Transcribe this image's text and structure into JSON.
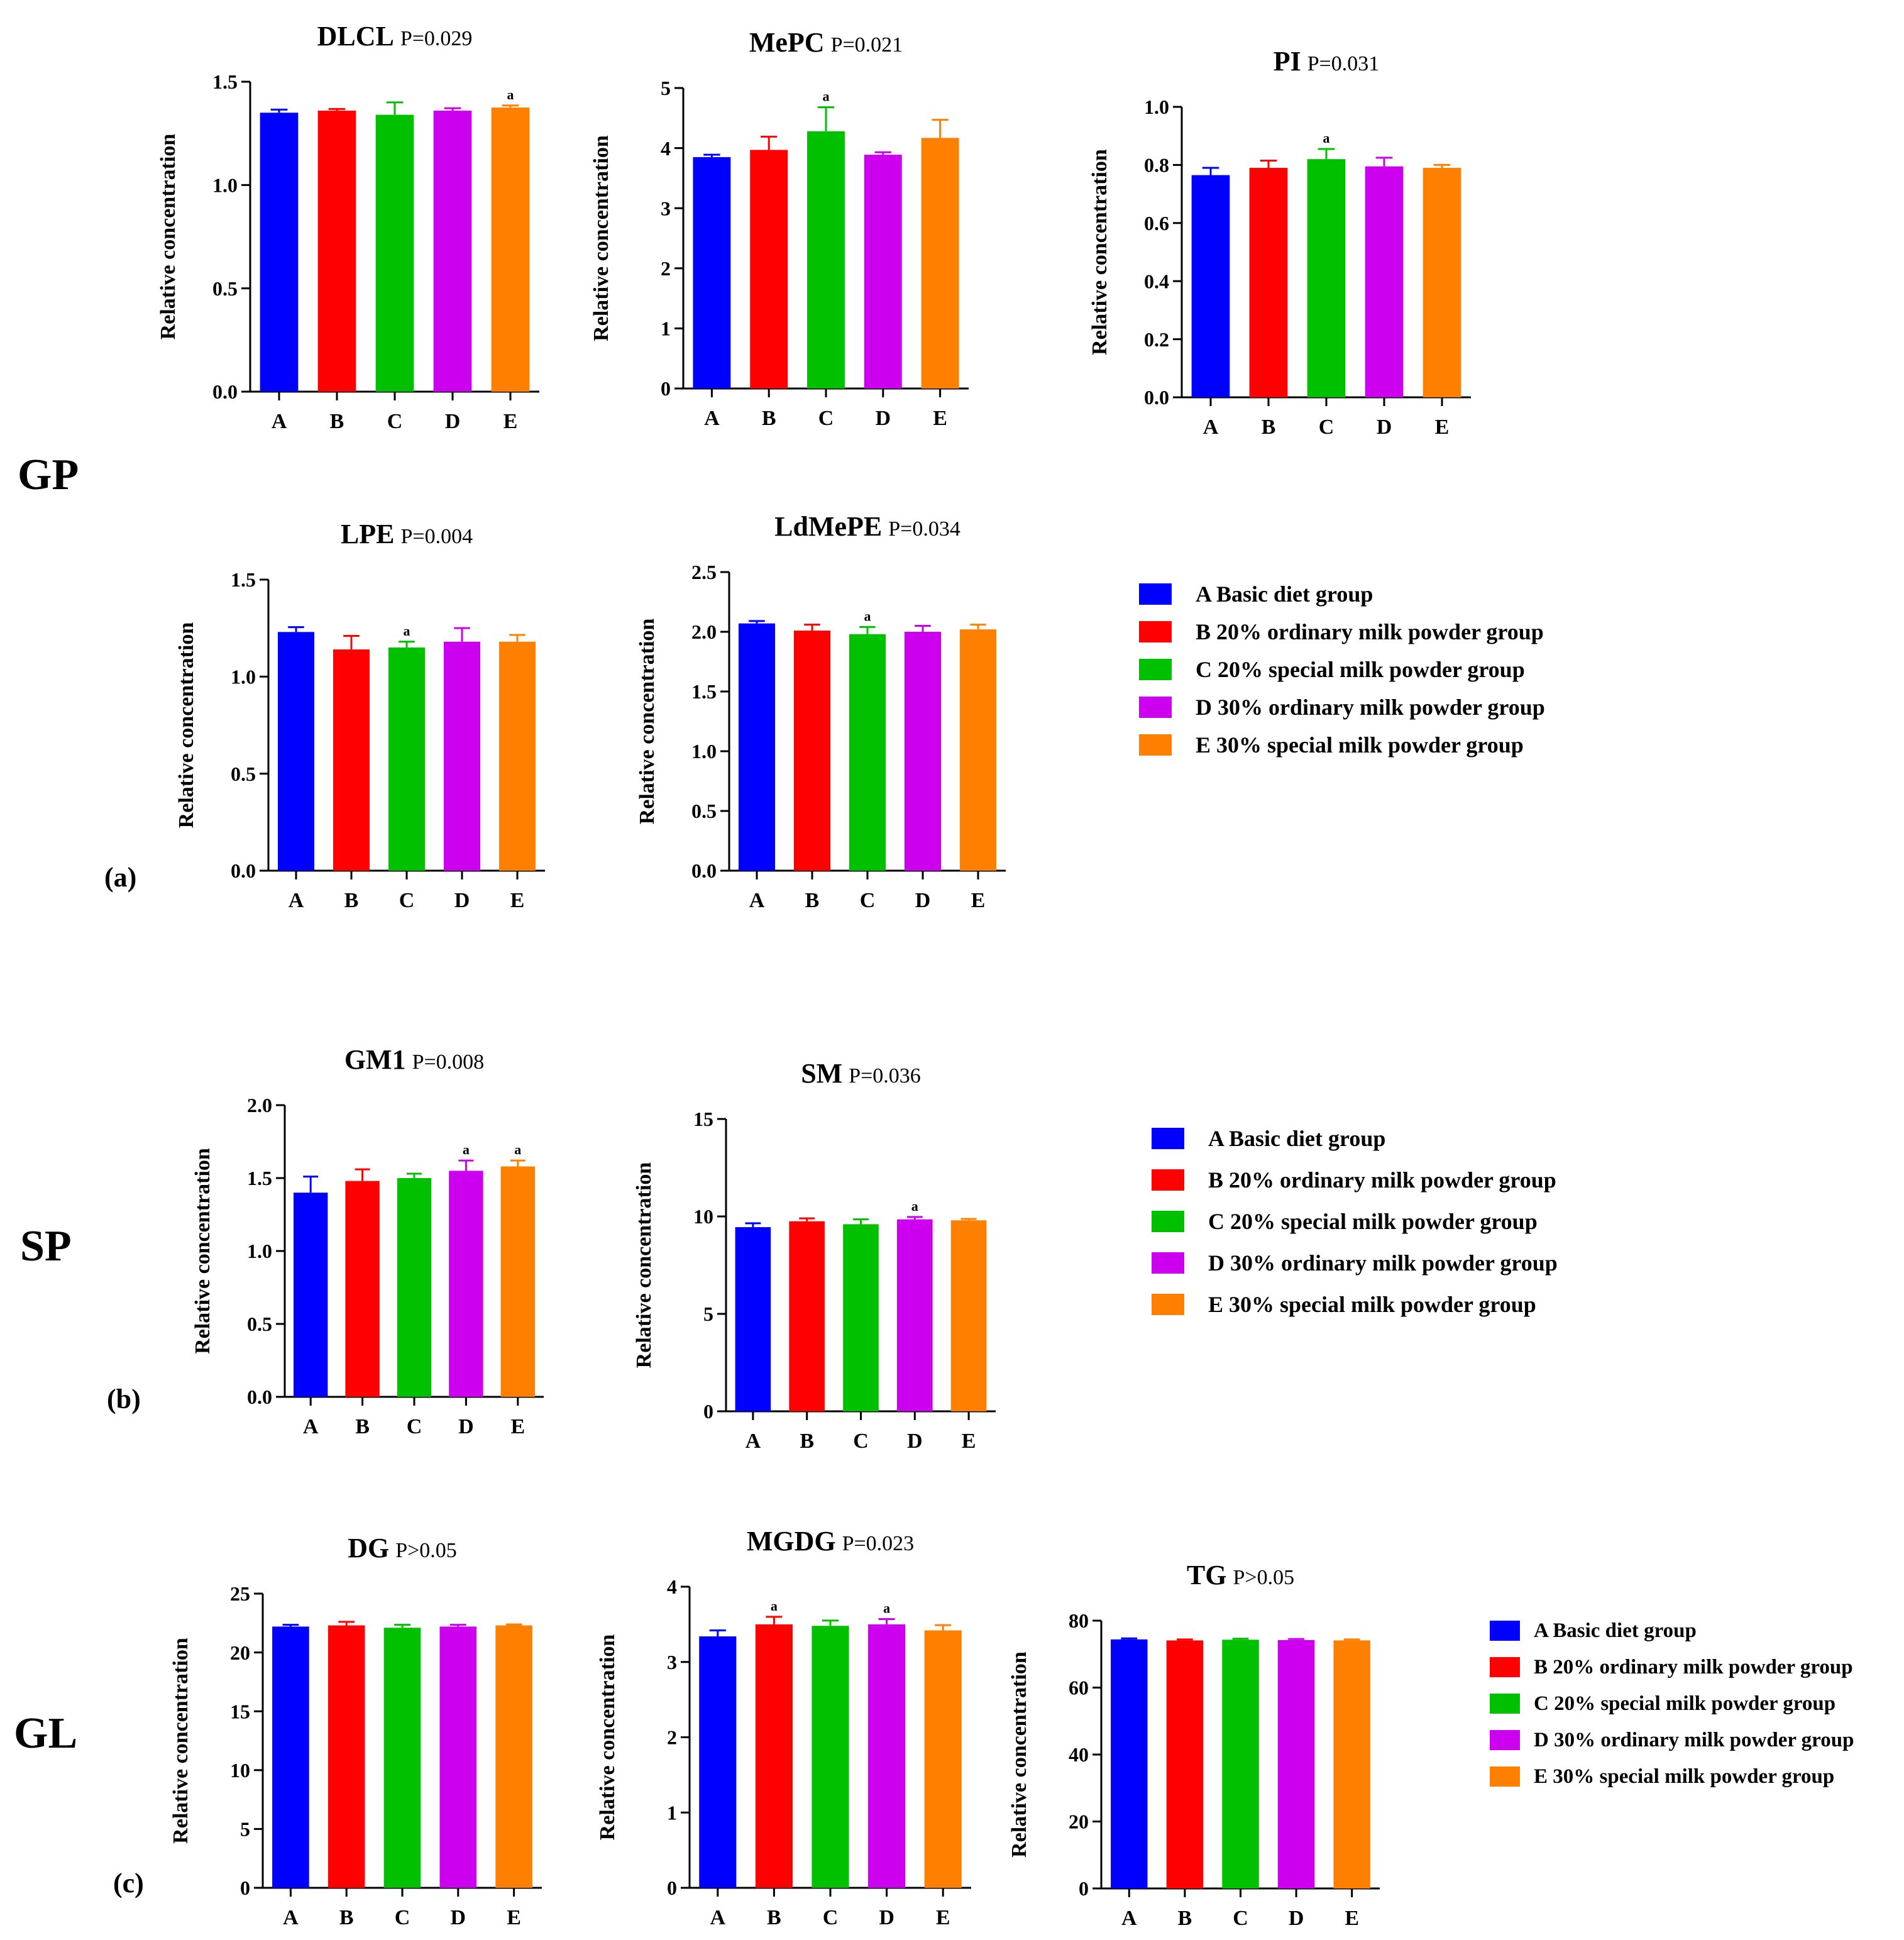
{
  "section_labels": {
    "gp": "GP",
    "sp": "SP",
    "gl": "GL"
  },
  "panel_labels": {
    "a": "(a)",
    "b": "(b)",
    "c": "(c)"
  },
  "legend": {
    "items": [
      "A Basic diet group",
      "B 20% ordinary milk powder group",
      "C 20% special milk powder group",
      "D 30% ordinary milk powder group",
      "E 30% special milk powder group"
    ]
  },
  "colors": [
    "#0000ff",
    "#ff0000",
    "#00c000",
    "#cc00ee",
    "#ff8000"
  ],
  "chart_data": [
    {
      "id": "dlcl",
      "type": "bar",
      "title": "DLCL",
      "pvalue": "P=0.029",
      "categories": [
        "A",
        "B",
        "C",
        "D",
        "E"
      ],
      "values": [
        1.35,
        1.36,
        1.34,
        1.36,
        1.375
      ],
      "errors": [
        0.015,
        0.008,
        0.06,
        0.012,
        0.01
      ],
      "annotations": [
        "",
        "",
        "",
        "",
        "a"
      ],
      "ylabel": "Relative concentration",
      "ylim": [
        0,
        1.5
      ],
      "yticks": [
        0.0,
        0.5,
        1.0,
        1.5
      ],
      "decimals": 1
    },
    {
      "id": "mepc",
      "type": "bar",
      "title": "MePC",
      "pvalue": "P=0.021",
      "categories": [
        "A",
        "B",
        "C",
        "D",
        "E"
      ],
      "values": [
        3.85,
        3.97,
        4.28,
        3.89,
        4.17
      ],
      "errors": [
        0.04,
        0.22,
        0.4,
        0.04,
        0.3
      ],
      "annotations": [
        "",
        "",
        "a",
        "",
        ""
      ],
      "ylabel": "Relative concentration",
      "ylim": [
        0,
        5
      ],
      "yticks": [
        0,
        1,
        2,
        3,
        4,
        5
      ],
      "decimals": 0
    },
    {
      "id": "pi",
      "type": "bar",
      "title": "PI",
      "pvalue": "P=0.031",
      "categories": [
        "A",
        "B",
        "C",
        "D",
        "E"
      ],
      "values": [
        0.765,
        0.79,
        0.82,
        0.795,
        0.79
      ],
      "errors": [
        0.025,
        0.025,
        0.035,
        0.03,
        0.01
      ],
      "annotations": [
        "",
        "",
        "a",
        "",
        ""
      ],
      "ylabel": "Relative concentration",
      "ylim": [
        0,
        1.0
      ],
      "yticks": [
        0.0,
        0.2,
        0.4,
        0.6,
        0.8,
        1.0
      ],
      "decimals": 1
    },
    {
      "id": "lpe",
      "type": "bar",
      "title": "LPE",
      "pvalue": "P=0.004",
      "categories": [
        "A",
        "B",
        "C",
        "D",
        "E"
      ],
      "values": [
        1.23,
        1.14,
        1.15,
        1.18,
        1.18
      ],
      "errors": [
        0.025,
        0.07,
        0.03,
        0.07,
        0.035
      ],
      "annotations": [
        "",
        "",
        "a",
        "",
        ""
      ],
      "ylabel": "Relative concentration",
      "ylim": [
        0,
        1.5
      ],
      "yticks": [
        0.0,
        0.5,
        1.0,
        1.5
      ],
      "decimals": 1
    },
    {
      "id": "ldmepe",
      "type": "bar",
      "title": "LdMePE",
      "pvalue": "P=0.034",
      "categories": [
        "A",
        "B",
        "C",
        "D",
        "E"
      ],
      "values": [
        2.07,
        2.01,
        1.98,
        2.0,
        2.02
      ],
      "errors": [
        0.02,
        0.05,
        0.06,
        0.05,
        0.04
      ],
      "annotations": [
        "",
        "",
        "a",
        "",
        ""
      ],
      "ylabel": "Relative concentration",
      "ylim": [
        0,
        2.5
      ],
      "yticks": [
        0.0,
        0.5,
        1.0,
        1.5,
        2.0,
        2.5
      ],
      "decimals": 1
    },
    {
      "id": "gm1",
      "type": "bar",
      "title": "GM1",
      "pvalue": "P=0.008",
      "categories": [
        "A",
        "B",
        "C",
        "D",
        "E"
      ],
      "values": [
        1.4,
        1.48,
        1.5,
        1.55,
        1.58
      ],
      "errors": [
        0.11,
        0.08,
        0.03,
        0.07,
        0.04
      ],
      "annotations": [
        "",
        "",
        "",
        "a",
        "a"
      ],
      "ylabel": "Relative concentration",
      "ylim": [
        0,
        2.0
      ],
      "yticks": [
        0.0,
        0.5,
        1.0,
        1.5,
        2.0
      ],
      "decimals": 1
    },
    {
      "id": "sm",
      "type": "bar",
      "title": "SM",
      "pvalue": "P=0.036",
      "categories": [
        "A",
        "B",
        "C",
        "D",
        "E"
      ],
      "values": [
        9.45,
        9.75,
        9.6,
        9.85,
        9.8
      ],
      "errors": [
        0.2,
        0.15,
        0.25,
        0.12,
        0.07
      ],
      "annotations": [
        "",
        "",
        "",
        "a",
        ""
      ],
      "ylabel": "Relative concentration",
      "ylim": [
        0,
        15
      ],
      "yticks": [
        0,
        5,
        10,
        15
      ],
      "decimals": 0
    },
    {
      "id": "dg",
      "type": "bar",
      "title": "DG",
      "pvalue": "P>0.05",
      "categories": [
        "A",
        "B",
        "C",
        "D",
        "E"
      ],
      "values": [
        22.2,
        22.3,
        22.1,
        22.2,
        22.3
      ],
      "errors": [
        0.15,
        0.3,
        0.25,
        0.15,
        0.08
      ],
      "annotations": [
        "",
        "",
        "",
        "",
        ""
      ],
      "ylabel": "Relative concentration",
      "ylim": [
        0,
        25
      ],
      "yticks": [
        0,
        5,
        10,
        15,
        20,
        25
      ],
      "decimals": 0
    },
    {
      "id": "mgdg",
      "type": "bar",
      "title": "MGDG",
      "pvalue": "P=0.023",
      "categories": [
        "A",
        "B",
        "C",
        "D",
        "E"
      ],
      "values": [
        3.34,
        3.5,
        3.48,
        3.5,
        3.42
      ],
      "errors": [
        0.08,
        0.1,
        0.07,
        0.07,
        0.07
      ],
      "annotations": [
        "",
        "a",
        "",
        "a",
        ""
      ],
      "ylabel": "Relative concentration",
      "ylim": [
        0,
        4
      ],
      "yticks": [
        0,
        1,
        2,
        3,
        4
      ],
      "decimals": 0
    },
    {
      "id": "tg",
      "type": "bar",
      "title": "TG",
      "pvalue": "P>0.05",
      "categories": [
        "A",
        "B",
        "C",
        "D",
        "E"
      ],
      "values": [
        74.4,
        74.1,
        74.3,
        74.2,
        74.1
      ],
      "errors": [
        0.3,
        0.3,
        0.3,
        0.3,
        0.3
      ],
      "annotations": [
        "",
        "",
        "",
        "",
        ""
      ],
      "ylabel": "Relative concentration",
      "ylim": [
        0,
        80
      ],
      "yticks": [
        0,
        20,
        40,
        60,
        80
      ],
      "decimals": 0
    }
  ]
}
